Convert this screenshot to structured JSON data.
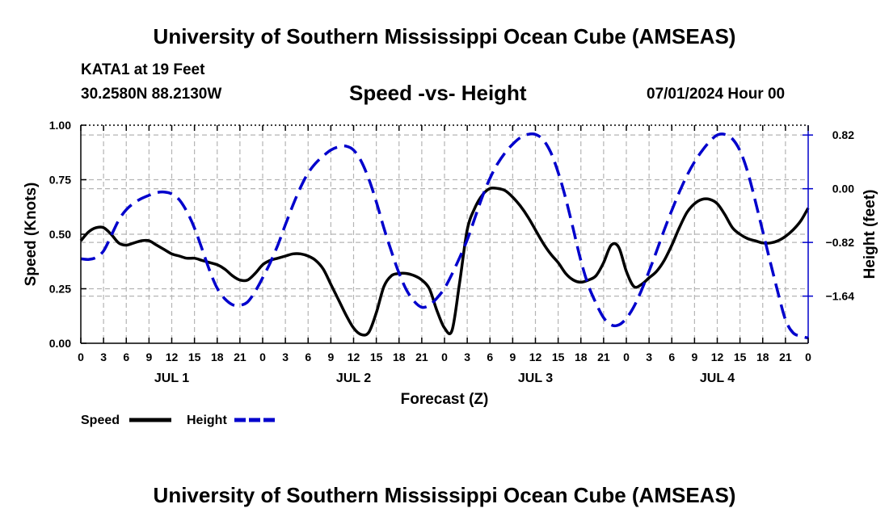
{
  "header": {
    "title": "University of Southern Mississippi Ocean Cube (AMSEAS)",
    "station": "KATA1 at 19 Feet",
    "coords": "30.2580N  88.2130W",
    "subtitle": "Speed -vs- Height",
    "datetime": "07/01/2024 Hour 00"
  },
  "footer": {
    "title": "University of Southern Mississippi Ocean Cube (AMSEAS)"
  },
  "colors": {
    "speed": "#000000",
    "height": "#0000cc",
    "grid": "#b4b4b4"
  },
  "chart_data": {
    "type": "line",
    "title": "Speed -vs- Height",
    "xlabel": "Forecast (Z)",
    "ylabel": "Speed (Knots)",
    "y2label": "Height (feet)",
    "xlim": [
      0,
      96
    ],
    "ylim": [
      0,
      1
    ],
    "y2lim": [
      -2.36,
      0.97
    ],
    "x_ticks": [
      0,
      3,
      6,
      9,
      12,
      15,
      18,
      21,
      24,
      27,
      30,
      33,
      36,
      39,
      42,
      45,
      48,
      51,
      54,
      57,
      60,
      63,
      66,
      69,
      72,
      75,
      78,
      81,
      84,
      87,
      90,
      93,
      96
    ],
    "x_tick_labels": [
      "0",
      "3",
      "6",
      "9",
      "12",
      "15",
      "18",
      "21",
      "0",
      "3",
      "6",
      "9",
      "12",
      "15",
      "18",
      "21",
      "0",
      "3",
      "6",
      "9",
      "12",
      "15",
      "18",
      "21",
      "0",
      "3",
      "6",
      "9",
      "12",
      "15",
      "18",
      "21",
      "0"
    ],
    "y_ticks": [
      0,
      0.25,
      0.5,
      0.75,
      1
    ],
    "y_tick_labels": [
      "0.00",
      "0.25",
      "0.50",
      "0.75",
      "1.00"
    ],
    "y2_ticks": [
      0.82,
      0,
      -0.82,
      -1.64
    ],
    "y2_tick_labels": [
      "0.82",
      "0.00",
      "−0.82",
      "−1.64"
    ],
    "day_labels": [
      {
        "x": 12,
        "label": "JUL 1"
      },
      {
        "x": 36,
        "label": "JUL 2"
      },
      {
        "x": 60,
        "label": "JUL 3"
      },
      {
        "x": 84,
        "label": "JUL 4"
      }
    ],
    "legend": [
      {
        "name": "Speed",
        "style": "solid"
      },
      {
        "name": "Height",
        "style": "dashed"
      }
    ],
    "series": [
      {
        "name": "Speed",
        "axis": "left",
        "style": "solid",
        "x": [
          0,
          1,
          2,
          3,
          4,
          5,
          6,
          7,
          8,
          9,
          10,
          11,
          12,
          13,
          14,
          15,
          16,
          17,
          18,
          19,
          20,
          21,
          22,
          23,
          24,
          25,
          26,
          27,
          28,
          29,
          30,
          31,
          32,
          33,
          34,
          35,
          36,
          37,
          38,
          39,
          40,
          41,
          42,
          43,
          44,
          45,
          46,
          47,
          48,
          49,
          50,
          51,
          52,
          53,
          54,
          55,
          56,
          57,
          58,
          59,
          60,
          61,
          62,
          63,
          64,
          65,
          66,
          67,
          68,
          69,
          70,
          71,
          72,
          73,
          74,
          75,
          76,
          77,
          78,
          79,
          80,
          81,
          82,
          83,
          84,
          85,
          86,
          87,
          88,
          89,
          90,
          91,
          92,
          93,
          94,
          95,
          96
        ],
        "values": [
          0.47,
          0.51,
          0.53,
          0.53,
          0.5,
          0.46,
          0.45,
          0.46,
          0.47,
          0.47,
          0.45,
          0.43,
          0.41,
          0.4,
          0.39,
          0.39,
          0.38,
          0.37,
          0.36,
          0.34,
          0.31,
          0.29,
          0.29,
          0.32,
          0.36,
          0.38,
          0.39,
          0.4,
          0.41,
          0.41,
          0.4,
          0.38,
          0.34,
          0.27,
          0.2,
          0.13,
          0.07,
          0.04,
          0.05,
          0.14,
          0.26,
          0.31,
          0.32,
          0.32,
          0.31,
          0.29,
          0.25,
          0.15,
          0.07,
          0.06,
          0.28,
          0.52,
          0.62,
          0.68,
          0.71,
          0.71,
          0.7,
          0.67,
          0.63,
          0.58,
          0.52,
          0.46,
          0.41,
          0.37,
          0.32,
          0.29,
          0.28,
          0.29,
          0.31,
          0.37,
          0.45,
          0.44,
          0.33,
          0.26,
          0.27,
          0.3,
          0.33,
          0.38,
          0.45,
          0.53,
          0.6,
          0.64,
          0.66,
          0.66,
          0.64,
          0.59,
          0.53,
          0.5,
          0.48,
          0.47,
          0.46,
          0.46,
          0.47,
          0.49,
          0.52,
          0.56,
          0.62
        ]
      },
      {
        "name": "Height",
        "axis": "right",
        "style": "dashed",
        "x": [
          0,
          1,
          2,
          3,
          4,
          5,
          6,
          7,
          8,
          9,
          10,
          11,
          12,
          13,
          14,
          15,
          16,
          17,
          18,
          19,
          20,
          21,
          22,
          23,
          24,
          25,
          26,
          27,
          28,
          29,
          30,
          31,
          32,
          33,
          34,
          35,
          36,
          37,
          38,
          39,
          40,
          41,
          42,
          43,
          44,
          45,
          46,
          47,
          48,
          49,
          50,
          51,
          52,
          53,
          54,
          55,
          56,
          57,
          58,
          59,
          60,
          61,
          62,
          63,
          64,
          65,
          66,
          67,
          68,
          69,
          70,
          71,
          72,
          73,
          74,
          75,
          76,
          77,
          78,
          79,
          80,
          81,
          82,
          83,
          84,
          85,
          86,
          87,
          88,
          89,
          90,
          91,
          92,
          93,
          94,
          95,
          96
        ],
        "values": [
          -1.07,
          -1.08,
          -1.05,
          -0.95,
          -0.72,
          -0.48,
          -0.32,
          -0.22,
          -0.15,
          -0.1,
          -0.06,
          -0.05,
          -0.08,
          -0.17,
          -0.35,
          -0.6,
          -0.92,
          -1.25,
          -1.52,
          -1.68,
          -1.77,
          -1.78,
          -1.73,
          -1.57,
          -1.36,
          -1.13,
          -0.86,
          -0.55,
          -0.25,
          0.02,
          0.24,
          0.39,
          0.5,
          0.59,
          0.64,
          0.65,
          0.59,
          0.42,
          0.15,
          -0.2,
          -0.6,
          -0.96,
          -1.29,
          -1.55,
          -1.72,
          -1.81,
          -1.78,
          -1.67,
          -1.52,
          -1.3,
          -1.05,
          -0.78,
          -0.45,
          -0.12,
          0.16,
          0.38,
          0.55,
          0.68,
          0.78,
          0.83,
          0.83,
          0.75,
          0.56,
          0.25,
          -0.15,
          -0.62,
          -1.1,
          -1.48,
          -1.75,
          -1.97,
          -2.08,
          -2.08,
          -1.98,
          -1.8,
          -1.55,
          -1.26,
          -0.95,
          -0.63,
          -0.33,
          -0.05,
          0.2,
          0.41,
          0.58,
          0.72,
          0.82,
          0.83,
          0.76,
          0.58,
          0.26,
          -0.18,
          -0.65,
          -1.12,
          -1.58,
          -2.0,
          -2.2,
          -2.25,
          -2.28
        ]
      }
    ]
  }
}
